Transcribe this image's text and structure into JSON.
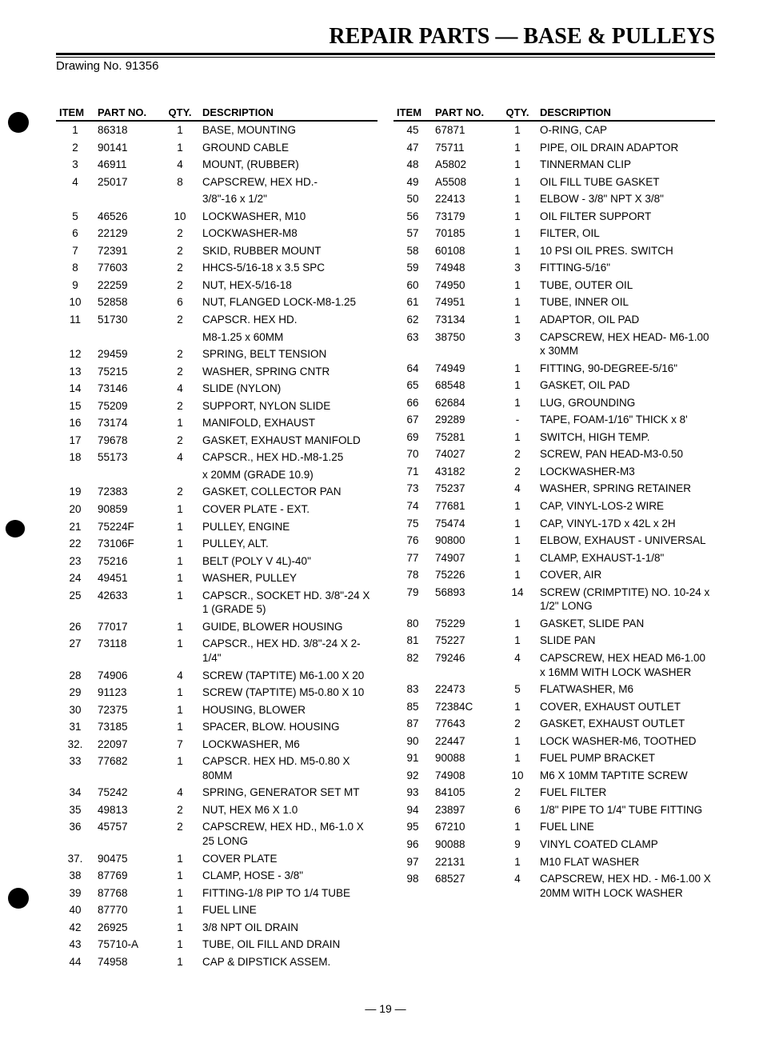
{
  "title": "REPAIR PARTS — BASE & PULLEYS",
  "drawing_no": "Drawing No. 91356",
  "page_number": "— 19 —",
  "headers": {
    "item": "ITEM",
    "part": "PART NO.",
    "qty": "QTY.",
    "desc": "DESCRIPTION"
  },
  "left": [
    {
      "item": "1",
      "part": "86318",
      "qty": "1",
      "desc": "BASE, MOUNTING"
    },
    {
      "item": "2",
      "part": "90141",
      "qty": "1",
      "desc": "GROUND CABLE"
    },
    {
      "item": "3",
      "part": "46911",
      "qty": "4",
      "desc": "MOUNT, (RUBBER)"
    },
    {
      "item": "4",
      "part": "25017",
      "qty": "8",
      "desc": "CAPSCREW, HEX HD.-"
    },
    {
      "item": "",
      "part": "",
      "qty": "",
      "desc": "3/8\"-16 x 1/2\""
    },
    {
      "item": "5",
      "part": "46526",
      "qty": "10",
      "desc": "LOCKWASHER, M10"
    },
    {
      "item": "6",
      "part": "22129",
      "qty": "2",
      "desc": "LOCKWASHER-M8"
    },
    {
      "item": "7",
      "part": "72391",
      "qty": "2",
      "desc": "SKID, RUBBER MOUNT"
    },
    {
      "item": "8",
      "part": "77603",
      "qty": "2",
      "desc": "HHCS-5/16-18 x 3.5 SPC"
    },
    {
      "item": "9",
      "part": "22259",
      "qty": "2",
      "desc": "NUT, HEX-5/16-18"
    },
    {
      "item": "10",
      "part": "52858",
      "qty": "6",
      "desc": "NUT, FLANGED LOCK-M8-1.25"
    },
    {
      "item": "11",
      "part": "51730",
      "qty": "2",
      "desc": "CAPSCR. HEX HD."
    },
    {
      "item": "",
      "part": "",
      "qty": "",
      "desc": "M8-1.25 x 60MM"
    },
    {
      "item": "12",
      "part": "29459",
      "qty": "2",
      "desc": "SPRING, BELT TENSION"
    },
    {
      "item": "13",
      "part": "75215",
      "qty": "2",
      "desc": "WASHER, SPRING CNTR"
    },
    {
      "item": "14",
      "part": "73146",
      "qty": "4",
      "desc": "SLIDE (NYLON)"
    },
    {
      "item": "15",
      "part": "75209",
      "qty": "2",
      "desc": "SUPPORT, NYLON SLIDE"
    },
    {
      "item": "16",
      "part": "73174",
      "qty": "1",
      "desc": "MANIFOLD, EXHAUST"
    },
    {
      "item": "17",
      "part": "79678",
      "qty": "2",
      "desc": "GASKET, EXHAUST MANIFOLD"
    },
    {
      "item": "18",
      "part": "55173",
      "qty": "4",
      "desc": "CAPSCR., HEX HD.-M8-1.25"
    },
    {
      "item": "",
      "part": "",
      "qty": "",
      "desc": "x 20MM (GRADE 10.9)"
    },
    {
      "item": "19",
      "part": "72383",
      "qty": "2",
      "desc": "GASKET, COLLECTOR PAN"
    },
    {
      "item": "20",
      "part": "90859",
      "qty": "1",
      "desc": "COVER PLATE - EXT."
    },
    {
      "item": "21",
      "part": "75224F",
      "qty": "1",
      "desc": "PULLEY, ENGINE"
    },
    {
      "item": "22",
      "part": "73106F",
      "qty": "1",
      "desc": "PULLEY, ALT."
    },
    {
      "item": "23",
      "part": "75216",
      "qty": "1",
      "desc": "BELT (POLY V 4L)-40\""
    },
    {
      "item": "24",
      "part": "49451",
      "qty": "1",
      "desc": "WASHER, PULLEY"
    },
    {
      "item": "25",
      "part": "42633",
      "qty": "1",
      "desc": "CAPSCR., SOCKET HD. 3/8\"-24 X 1 (GRADE 5)"
    },
    {
      "item": "26",
      "part": "77017",
      "qty": "1",
      "desc": "GUIDE, BLOWER HOUSING"
    },
    {
      "item": "27",
      "part": "73118",
      "qty": "1",
      "desc": "CAPSCR., HEX HD. 3/8\"-24 X 2-1/4\""
    },
    {
      "item": "28",
      "part": "74906",
      "qty": "4",
      "desc": "SCREW (TAPTITE) M6-1.00 X 20"
    },
    {
      "item": "29",
      "part": "91123",
      "qty": "1",
      "desc": "SCREW (TAPTITE) M5-0.80 X 10"
    },
    {
      "item": "30",
      "part": "72375",
      "qty": "1",
      "desc": "HOUSING, BLOWER"
    },
    {
      "item": "31",
      "part": "73185",
      "qty": "1",
      "desc": "SPACER, BLOW. HOUSING"
    },
    {
      "item": "32.",
      "part": "22097",
      "qty": "7",
      "desc": "LOCKWASHER, M6"
    },
    {
      "item": "33",
      "part": "77682",
      "qty": "1",
      "desc": "CAPSCR. HEX HD. M5-0.80 X 80MM"
    },
    {
      "item": "34",
      "part": "75242",
      "qty": "4",
      "desc": "SPRING, GENERATOR SET MT"
    },
    {
      "item": "35",
      "part": "49813",
      "qty": "2",
      "desc": "NUT, HEX M6 X 1.0"
    },
    {
      "item": "36",
      "part": "45757",
      "qty": "2",
      "desc": "CAPSCREW, HEX HD., M6-1.0 X 25 LONG"
    },
    {
      "item": "37.",
      "part": "90475",
      "qty": "1",
      "desc": "COVER PLATE"
    },
    {
      "item": "38",
      "part": "87769",
      "qty": "1",
      "desc": "CLAMP, HOSE - 3/8\""
    },
    {
      "item": "39",
      "part": "87768",
      "qty": "1",
      "desc": "FITTING-1/8 PIP TO 1/4 TUBE"
    },
    {
      "item": "40",
      "part": "87770",
      "qty": "1",
      "desc": "FUEL LINE"
    },
    {
      "item": "42",
      "part": "26925",
      "qty": "1",
      "desc": "3/8 NPT OIL DRAIN"
    },
    {
      "item": "43",
      "part": "75710-A",
      "qty": "1",
      "desc": "TUBE, OIL FILL AND DRAIN"
    },
    {
      "item": "44",
      "part": "74958",
      "qty": "1",
      "desc": "CAP & DIPSTICK ASSEM."
    }
  ],
  "right": [
    {
      "item": "45",
      "part": "67871",
      "qty": "1",
      "desc": "O-RING, CAP"
    },
    {
      "item": "47",
      "part": "75711",
      "qty": "1",
      "desc": "PIPE, OIL DRAIN ADAPTOR"
    },
    {
      "item": "48",
      "part": "A5802",
      "qty": "1",
      "desc": "TINNERMAN CLIP"
    },
    {
      "item": "49",
      "part": "A5508",
      "qty": "1",
      "desc": "OIL FILL TUBE GASKET"
    },
    {
      "item": "50",
      "part": "22413",
      "qty": "1",
      "desc": "ELBOW - 3/8\" NPT X 3/8\""
    },
    {
      "item": "56",
      "part": "73179",
      "qty": "1",
      "desc": "OIL FILTER SUPPORT"
    },
    {
      "item": "57",
      "part": "70185",
      "qty": "1",
      "desc": "FILTER, OIL"
    },
    {
      "item": "58",
      "part": "60108",
      "qty": "1",
      "desc": "10 PSI OIL PRES. SWITCH"
    },
    {
      "item": "59",
      "part": "74948",
      "qty": "3",
      "desc": "FITTING-5/16\""
    },
    {
      "item": "60",
      "part": "74950",
      "qty": "1",
      "desc": "TUBE, OUTER OIL"
    },
    {
      "item": "61",
      "part": "74951",
      "qty": "1",
      "desc": "TUBE, INNER OIL"
    },
    {
      "item": "62",
      "part": "73134",
      "qty": "1",
      "desc": "ADAPTOR, OIL PAD"
    },
    {
      "item": "63",
      "part": "38750",
      "qty": "3",
      "desc": "CAPSCREW, HEX HEAD- M6-1.00 x 30MM"
    },
    {
      "item": "64",
      "part": "74949",
      "qty": "1",
      "desc": "FITTING, 90-DEGREE-5/16\""
    },
    {
      "item": "65",
      "part": "68548",
      "qty": "1",
      "desc": "GASKET, OIL PAD"
    },
    {
      "item": "66",
      "part": "62684",
      "qty": "1",
      "desc": "LUG, GROUNDING"
    },
    {
      "item": "67",
      "part": "29289",
      "qty": "-",
      "desc": "TAPE, FOAM-1/16\" THICK x 8'"
    },
    {
      "item": "69",
      "part": "75281",
      "qty": "1",
      "desc": "SWITCH, HIGH TEMP."
    },
    {
      "item": "70",
      "part": "74027",
      "qty": "2",
      "desc": "SCREW, PAN HEAD-M3-0.50"
    },
    {
      "item": "71",
      "part": "43182",
      "qty": "2",
      "desc": "LOCKWASHER-M3"
    },
    {
      "item": "73",
      "part": "75237",
      "qty": "4",
      "desc": "WASHER, SPRING RETAINER"
    },
    {
      "item": "74",
      "part": "77681",
      "qty": "1",
      "desc": "CAP, VINYL-LOS-2 WIRE"
    },
    {
      "item": "75",
      "part": "75474",
      "qty": "1",
      "desc": "CAP, VINYL-17D x 42L x 2H"
    },
    {
      "item": "76",
      "part": "90800",
      "qty": "1",
      "desc": "ELBOW, EXHAUST - UNIVERSAL"
    },
    {
      "item": "77",
      "part": "74907",
      "qty": "1",
      "desc": "CLAMP, EXHAUST-1-1/8\""
    },
    {
      "item": "78",
      "part": "75226",
      "qty": "1",
      "desc": "COVER, AIR"
    },
    {
      "item": "79",
      "part": "56893",
      "qty": "14",
      "desc": "SCREW (CRIMPTITE) NO. 10-24 x 1/2\" LONG"
    },
    {
      "item": "80",
      "part": "75229",
      "qty": "1",
      "desc": "GASKET, SLIDE PAN"
    },
    {
      "item": "81",
      "part": "75227",
      "qty": "1",
      "desc": "SLIDE PAN"
    },
    {
      "item": "82",
      "part": "79246",
      "qty": "4",
      "desc": "CAPSCREW, HEX HEAD M6-1.00 x 16MM WITH LOCK WASHER"
    },
    {
      "item": "83",
      "part": "22473",
      "qty": "5",
      "desc": "FLATWASHER, M6"
    },
    {
      "item": "85",
      "part": "72384C",
      "qty": "1",
      "desc": "COVER, EXHAUST OUTLET"
    },
    {
      "item": "87",
      "part": "77643",
      "qty": "2",
      "desc": "GASKET, EXHAUST OUTLET"
    },
    {
      "item": "90",
      "part": "22447",
      "qty": "1",
      "desc": "LOCK WASHER-M6, TOOTHED"
    },
    {
      "item": "91",
      "part": "90088",
      "qty": "1",
      "desc": "FUEL PUMP BRACKET"
    },
    {
      "item": "92",
      "part": "74908",
      "qty": "10",
      "desc": "M6 X 10MM TAPTITE SCREW"
    },
    {
      "item": "93",
      "part": "84105",
      "qty": "2",
      "desc": "FUEL FILTER"
    },
    {
      "item": "94",
      "part": "23897",
      "qty": "6",
      "desc": "1/8\" PIPE TO 1/4\" TUBE FITTING"
    },
    {
      "item": "95",
      "part": "67210",
      "qty": "1",
      "desc": "FUEL LINE"
    },
    {
      "item": "96",
      "part": "90088",
      "qty": "9",
      "desc": "VINYL COATED CLAMP"
    },
    {
      "item": "97",
      "part": "22131",
      "qty": "1",
      "desc": "M10 FLAT WASHER"
    },
    {
      "item": "98",
      "part": "68527",
      "qty": "4",
      "desc": "CAPSCREW, HEX HD. - M6-1.00 X 20MM WITH LOCK WASHER"
    }
  ]
}
